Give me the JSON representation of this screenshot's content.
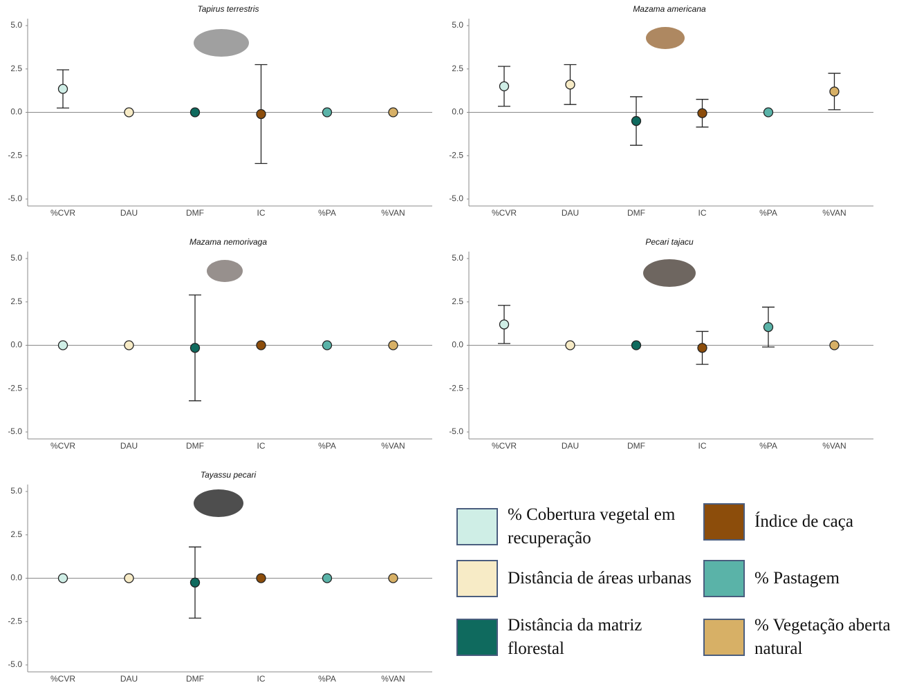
{
  "chart_data": [
    {
      "type": "errorbar",
      "title": "Tapirus terrestris",
      "categories": [
        "%CVR",
        "DAU",
        "DMF",
        "IC",
        "%PA",
        "%VAN"
      ],
      "values": [
        1.35,
        0,
        0,
        -0.1,
        0,
        0
      ],
      "errors": [
        1.1,
        null,
        null,
        2.85,
        null,
        null
      ],
      "ylim": [
        -5.4,
        5.4
      ],
      "yticks": [
        {
          "value": 5,
          "label": "5.0"
        },
        {
          "value": 2.5,
          "label": "2.5"
        },
        {
          "value": 0,
          "label": "0.0"
        },
        {
          "value": -2.5,
          "label": "-2.5"
        },
        {
          "value": -5,
          "label": "-5.0"
        }
      ]
    },
    {
      "type": "errorbar",
      "title": "Mazama americana",
      "categories": [
        "%CVR",
        "DAU",
        "DMF",
        "IC",
        "%PA",
        "%VAN"
      ],
      "values": [
        1.5,
        1.6,
        -0.5,
        -0.05,
        0,
        1.2
      ],
      "errors": [
        1.15,
        1.15,
        1.4,
        0.8,
        null,
        1.05
      ],
      "ylim": [
        -5.4,
        5.4
      ],
      "yticks": [
        {
          "value": 5,
          "label": "5.0"
        },
        {
          "value": 2.5,
          "label": "2.5"
        },
        {
          "value": 0,
          "label": "0.0"
        },
        {
          "value": -2.5,
          "label": "-2.5"
        },
        {
          "value": -5,
          "label": "-5.0"
        }
      ]
    },
    {
      "type": "errorbar",
      "title": "Mazama nemorivaga",
      "categories": [
        "%CVR",
        "DAU",
        "DMF",
        "IC",
        "%PA",
        "%VAN"
      ],
      "values": [
        0,
        0,
        -0.15,
        0,
        0,
        0
      ],
      "errors": [
        null,
        null,
        3.05,
        null,
        null,
        null
      ],
      "ylim": [
        -5.4,
        5.4
      ],
      "yticks": [
        {
          "value": 5,
          "label": "5.0"
        },
        {
          "value": 2.5,
          "label": "2.5"
        },
        {
          "value": 0,
          "label": "0.0"
        },
        {
          "value": -2.5,
          "label": "-2.5"
        },
        {
          "value": -5,
          "label": "-5.0"
        }
      ]
    },
    {
      "type": "errorbar",
      "title": "Pecari tajacu",
      "categories": [
        "%CVR",
        "DAU",
        "DMF",
        "IC",
        "%PA",
        "%VAN"
      ],
      "values": [
        1.2,
        0,
        0,
        -0.15,
        1.05,
        0
      ],
      "errors": [
        1.1,
        null,
        null,
        0.95,
        1.15,
        null
      ],
      "ylim": [
        -5.4,
        5.4
      ],
      "yticks": [
        {
          "value": 5,
          "label": "5.0"
        },
        {
          "value": 2.5,
          "label": "2.5"
        },
        {
          "value": 0,
          "label": "0.0"
        },
        {
          "value": -2.5,
          "label": "-2.5"
        },
        {
          "value": -5,
          "label": "-5.0"
        }
      ]
    },
    {
      "type": "errorbar",
      "title": "Tayassu pecari",
      "categories": [
        "%CVR",
        "DAU",
        "DMF",
        "IC",
        "%PA",
        "%VAN"
      ],
      "values": [
        0,
        0,
        -0.25,
        0,
        0,
        0
      ],
      "errors": [
        null,
        null,
        2.05,
        null,
        null,
        null
      ],
      "ylim": [
        -5.4,
        5.4
      ],
      "yticks": [
        {
          "value": 5,
          "label": "5.0"
        },
        {
          "value": 2.5,
          "label": "2.5"
        },
        {
          "value": 0,
          "label": "0.0"
        },
        {
          "value": -2.5,
          "label": "-2.5"
        },
        {
          "value": -5,
          "label": "-5.0"
        }
      ]
    }
  ],
  "legend": [
    {
      "label": "% Cobertura vegetal em recuperação",
      "color": "#cfeee6"
    },
    {
      "label": "Distância de áreas urbanas",
      "color": "#f7ebc6"
    },
    {
      "label": "Distância da matriz florestal",
      "color": "#0f6a5e"
    },
    {
      "label": "Índice de caça",
      "color": "#8c4d0b"
    },
    {
      "label": "% Pastagem",
      "color": "#5ab3a8"
    },
    {
      "label": "% Vegetação aberta natural",
      "color": "#d7b066"
    }
  ]
}
